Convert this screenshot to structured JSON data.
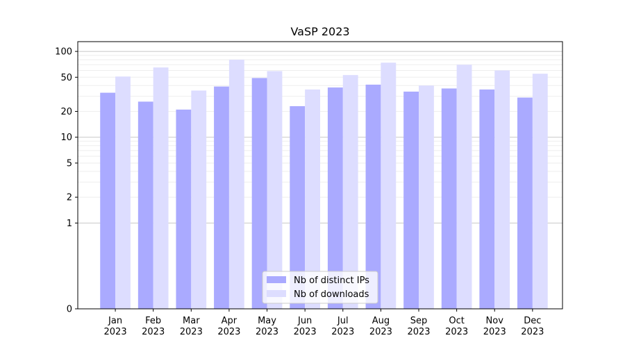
{
  "chart_data": {
    "type": "bar",
    "title": "VaSP 2023",
    "xlabel": "",
    "ylabel": "",
    "yscale": "symlog",
    "linthresh": 1,
    "ylim": [
      0,
      130
    ],
    "yticks": [
      0,
      1,
      2,
      5,
      10,
      20,
      50,
      100
    ],
    "ytick_labels": [
      "0",
      "1",
      "2",
      "5",
      "10",
      "20",
      "50",
      "100"
    ],
    "categories": [
      [
        "Jan",
        "2023"
      ],
      [
        "Feb",
        "2023"
      ],
      [
        "Mar",
        "2023"
      ],
      [
        "Apr",
        "2023"
      ],
      [
        "May",
        "2023"
      ],
      [
        "Jun",
        "2023"
      ],
      [
        "Jul",
        "2023"
      ],
      [
        "Aug",
        "2023"
      ],
      [
        "Sep",
        "2023"
      ],
      [
        "Oct",
        "2023"
      ],
      [
        "Nov",
        "2023"
      ],
      [
        "Dec",
        "2023"
      ]
    ],
    "series": [
      {
        "name": "Nb of distinct IPs",
        "color": "#aaaaff",
        "values": [
          33,
          26,
          21,
          39,
          49,
          23,
          38,
          41,
          34,
          37,
          36,
          29
        ]
      },
      {
        "name": "Nb of downloads",
        "color": "#ddddff",
        "values": [
          51,
          65,
          35,
          80,
          59,
          36,
          53,
          74,
          40,
          70,
          60,
          55
        ]
      }
    ],
    "grid": true,
    "legend_position": "bottom-center"
  }
}
